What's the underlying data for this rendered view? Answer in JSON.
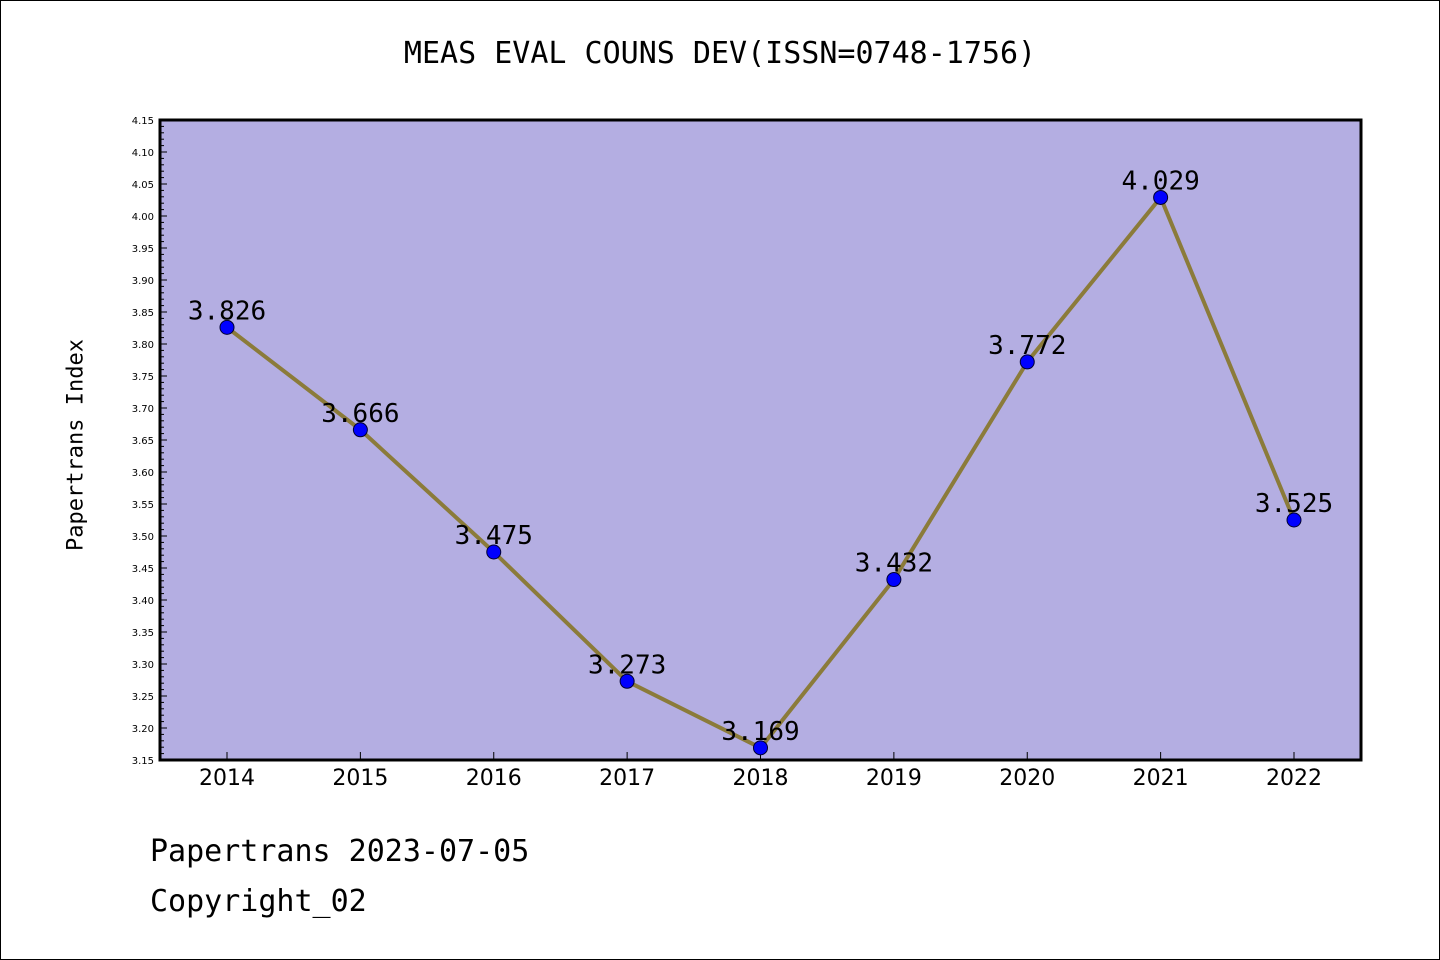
{
  "chart_data": {
    "type": "line",
    "title": "MEAS EVAL COUNS DEV(ISSN=0748-1756)",
    "xlabel": "",
    "ylabel": "Papertrans Index",
    "categories": [
      "2014",
      "2015",
      "2016",
      "2017",
      "2018",
      "2019",
      "2020",
      "2021",
      "2022"
    ],
    "series": [
      {
        "values": [
          3.826,
          3.666,
          3.475,
          3.273,
          3.169,
          3.432,
          3.772,
          4.029,
          3.525
        ]
      }
    ],
    "data_labels": [
      "3.826",
      "3.666",
      "3.475",
      "3.273",
      "3.169",
      "3.432",
      "3.772",
      "4.029",
      "3.525"
    ],
    "ylim": [
      3.15,
      4.15
    ],
    "yticks": [
      "3.15",
      "3.20",
      "3.25",
      "3.30",
      "3.35",
      "3.40",
      "3.45",
      "3.50",
      "3.55",
      "3.60",
      "3.65",
      "3.70",
      "3.75",
      "3.80",
      "3.85",
      "3.90",
      "3.95",
      "4.00",
      "4.05",
      "4.10",
      "4.15"
    ],
    "grid": false,
    "colors": {
      "background": "#b4aee2",
      "line": "#8b7b3a",
      "marker": "#0000ff"
    }
  },
  "footer": {
    "date_text": "Papertrans 2023-07-05",
    "copyright_text": "Copyright_02"
  }
}
